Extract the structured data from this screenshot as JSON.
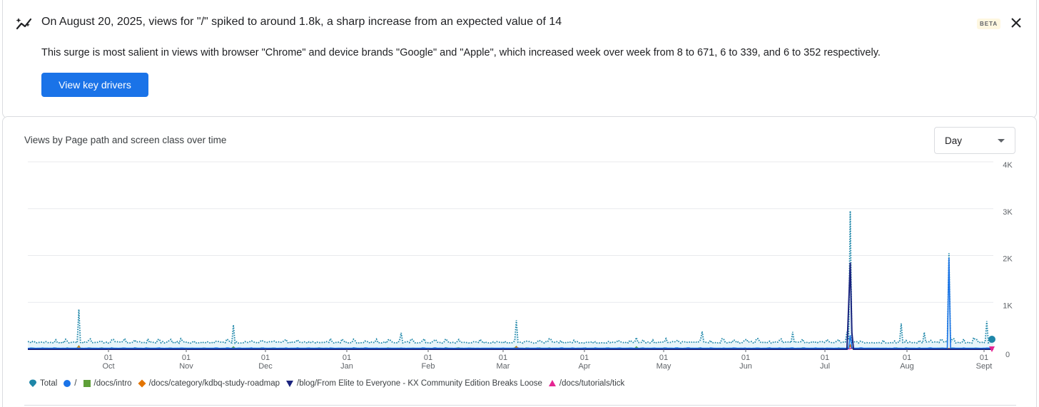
{
  "insight": {
    "icon": "anomaly-trend-icon",
    "title": "On August 20, 2025, views for \"/\" spiked to around 1.8k, a sharp increase from an expected value of 14",
    "body": "This surge is most salient in views with browser \"Chrome\" and device brands \"Google\" and \"Apple\", which increased week over week from 8 to 671, 6 to 339, and 6 to 352 respectively.",
    "badge": "BETA",
    "action_label": "View key drivers",
    "close_icon": "close-icon"
  },
  "chart": {
    "title": "Views by Page path and screen class over time",
    "granularity": {
      "selected": "Day"
    },
    "dropdown_icon": "chevron-down-icon"
  },
  "colors": {
    "total": "#1e86a8",
    "root": "#1a73e8",
    "intro": "#5e9f38",
    "roadmap": "#e37400",
    "blog": "#1a237e",
    "tick": "#e52592",
    "grid": "#e8eaed",
    "axis": "#5f6368"
  },
  "chart_data": {
    "type": "line",
    "title": "Views by Page path and screen class over time",
    "ylim": [
      0,
      4000
    ],
    "y_ticks": [
      {
        "label": "0",
        "value": 0
      },
      {
        "label": "1K",
        "value": 1000
      },
      {
        "label": "2K",
        "value": 2000
      },
      {
        "label": "3K",
        "value": 3000
      },
      {
        "label": "4K",
        "value": 4000
      }
    ],
    "x_ticks": [
      {
        "day": "01",
        "month": "Oct"
      },
      {
        "day": "01",
        "month": "Nov"
      },
      {
        "day": "01",
        "month": "Dec"
      },
      {
        "day": "01",
        "month": "Jan"
      },
      {
        "day": "01",
        "month": "Feb"
      },
      {
        "day": "01",
        "month": "Mar"
      },
      {
        "day": "01",
        "month": "Apr"
      },
      {
        "day": "01",
        "month": "May"
      },
      {
        "day": "01",
        "month": "Jun"
      },
      {
        "day": "01",
        "month": "Jul"
      },
      {
        "day": "01",
        "month": "Aug"
      },
      {
        "day": "01",
        "month": "Sept"
      }
    ],
    "series": [
      {
        "name": "Total",
        "marker": "teardrop",
        "color_key": "total",
        "baseline": 130,
        "noise": 100,
        "peaks": [
          [
            31,
            850
          ],
          [
            125,
            520
          ],
          [
            227,
            350
          ],
          [
            297,
            620
          ],
          [
            370,
            250
          ],
          [
            410,
            380
          ],
          [
            465,
            370
          ],
          [
            498,
            370
          ],
          [
            500,
            2950
          ],
          [
            531,
            550
          ],
          [
            545,
            360
          ],
          [
            560,
            2050
          ],
          [
            575,
            250
          ],
          [
            583,
            600
          ]
        ]
      },
      {
        "name": "/",
        "marker": "circle",
        "color_key": "root",
        "baseline": 20,
        "noise": 10,
        "peaks": [
          [
            500,
            300
          ],
          [
            560,
            1950
          ]
        ]
      },
      {
        "name": "/docs/intro",
        "marker": "square",
        "color_key": "intro",
        "baseline": 15,
        "noise": 15,
        "peaks": [
          [
            31,
            70
          ],
          [
            125,
            50
          ],
          [
            297,
            60
          ],
          [
            370,
            50
          ],
          [
            500,
            80
          ]
        ]
      },
      {
        "name": "/docs/category/kdbq-study-roadmap",
        "marker": "diamond",
        "color_key": "roadmap",
        "baseline": 10,
        "noise": 10,
        "peaks": [
          [
            31,
            60
          ],
          [
            297,
            50
          ],
          [
            500,
            90
          ]
        ]
      },
      {
        "name": "/blog/From Elite to Everyone - KX Community Edition Breaks Loose",
        "marker": "triangle-down",
        "color_key": "blog",
        "baseline": 0,
        "noise": 0,
        "peaks": [
          [
            499,
            900
          ],
          [
            500,
            1850
          ],
          [
            501,
            350
          ]
        ]
      },
      {
        "name": "/docs/tutorials/tick",
        "marker": "triangle-up",
        "color_key": "tick",
        "baseline": 5,
        "noise": 6,
        "peaks": [
          [
            298,
            30
          ],
          [
            501,
            40
          ]
        ]
      }
    ]
  }
}
